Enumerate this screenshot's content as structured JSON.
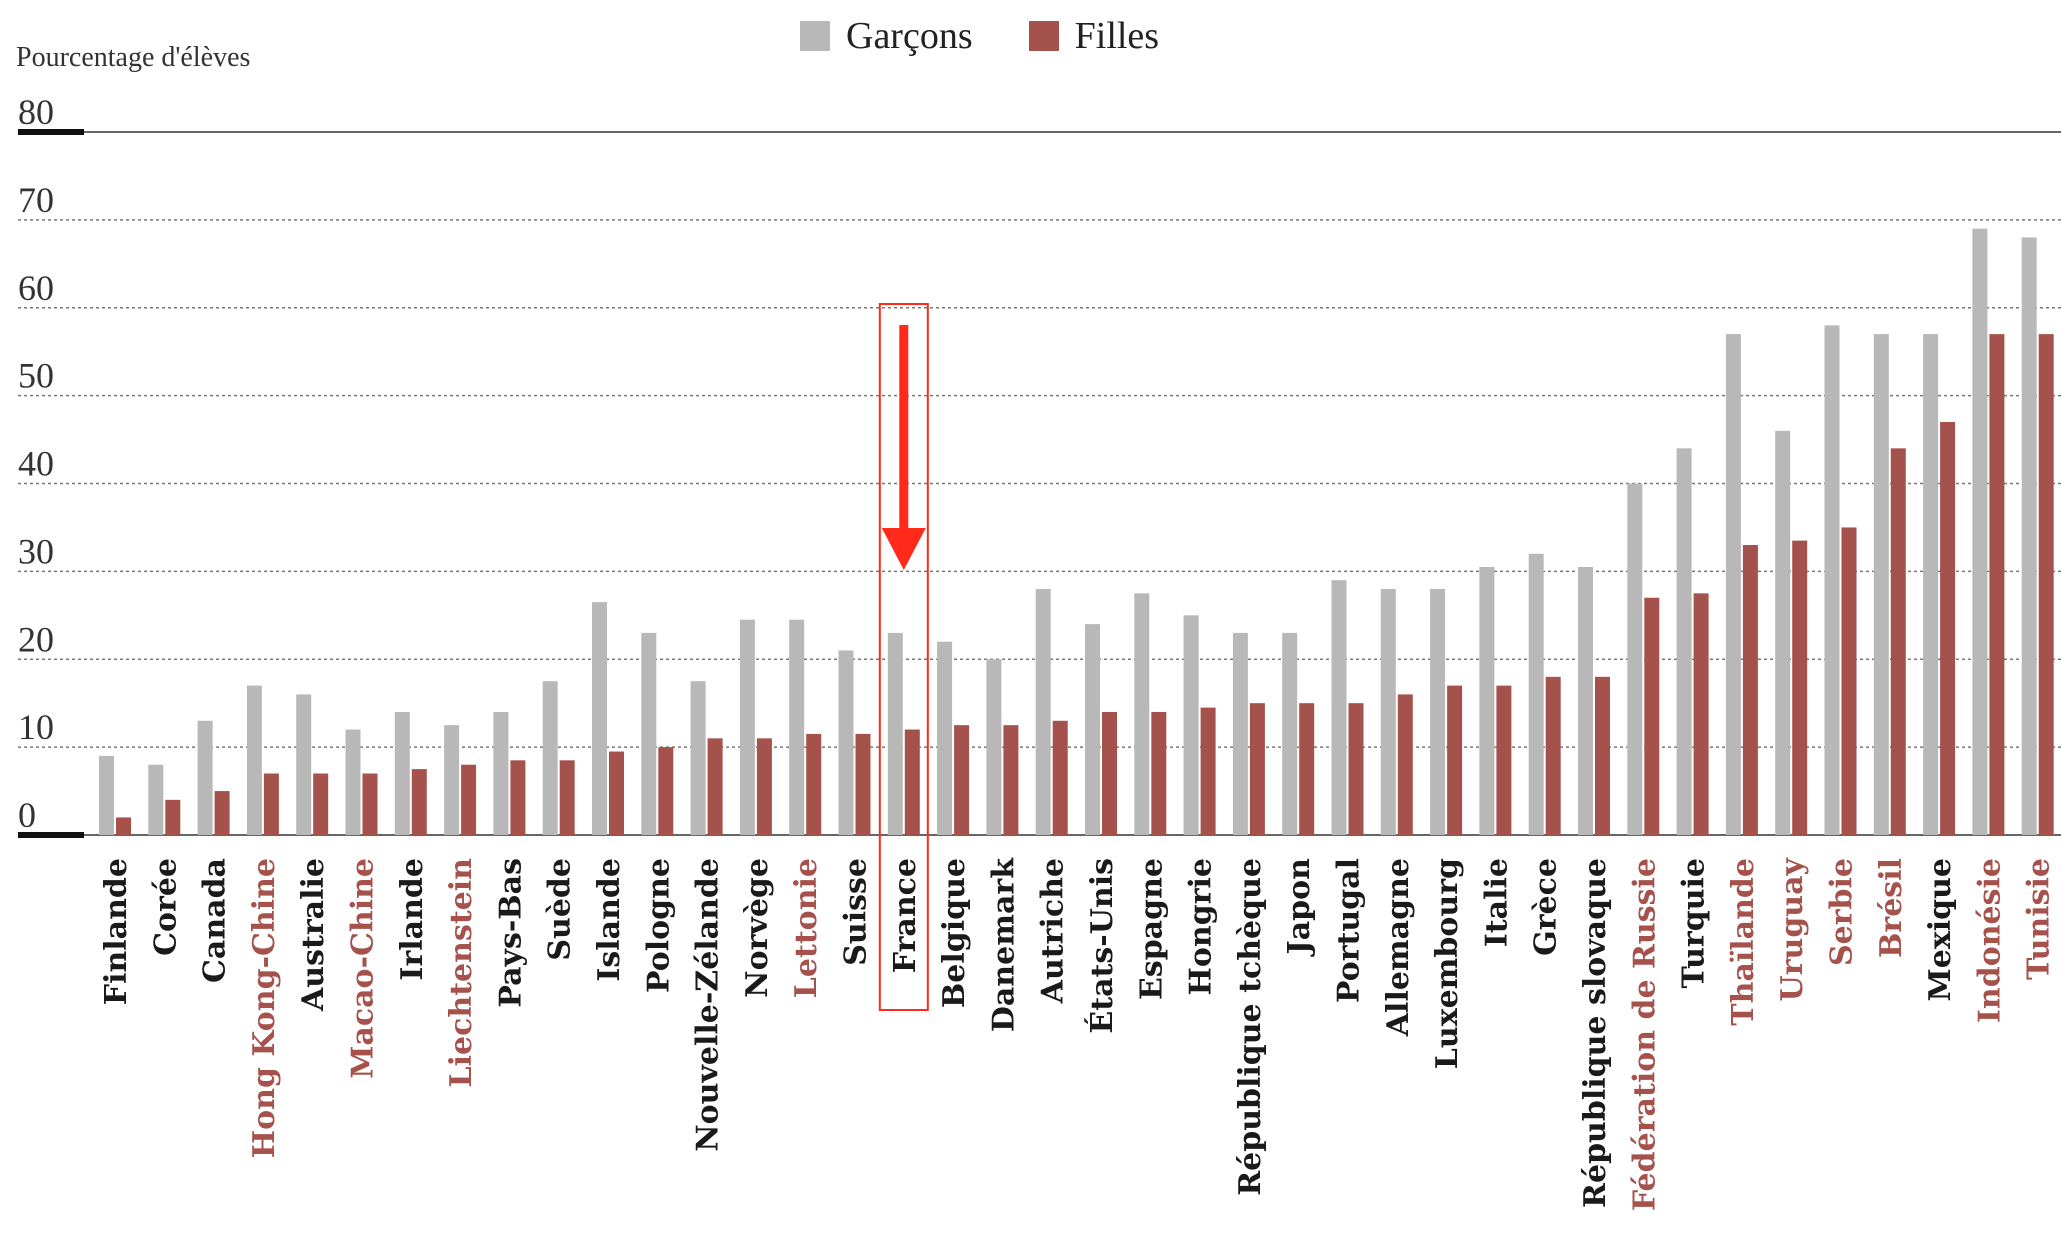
{
  "chart_data": {
    "type": "bar",
    "ylabel": "Pourcentage d'élèves",
    "ylim": [
      0,
      80
    ],
    "yticks": [
      "0",
      "10",
      "20",
      "30",
      "40",
      "50",
      "60",
      "70",
      "80"
    ],
    "grid": true,
    "legend_position": "top-center",
    "categories": [
      "Finlande",
      "Corée",
      "Canada",
      "Hong Kong-Chine",
      "Australie",
      "Macao-Chine",
      "Irlande",
      "Liechtenstein",
      "Pays-Bas",
      "Suède",
      "Islande",
      "Pologne",
      "Nouvelle-Zélande",
      "Norvège",
      "Lettonie",
      "Suisse",
      "France",
      "Belgique",
      "Danemark",
      "Autriche",
      "États-Unis",
      "Espagne",
      "Hongrie",
      "République tchèque",
      "Japon",
      "Portugal",
      "Allemagne",
      "Luxembourg",
      "Italie",
      "Grèce",
      "République slovaque",
      "Fédération de Russie",
      "Turquie",
      "Thaïlande",
      "Uruguay",
      "Serbie",
      "Brésil",
      "Mexique",
      "Indonésie",
      "Tunisie"
    ],
    "partner_countries": [
      "Hong Kong-Chine",
      "Macao-Chine",
      "Liechtenstein",
      "Lettonie",
      "Fédération de Russie",
      "Thaïlande",
      "Uruguay",
      "Serbie",
      "Brésil",
      "Indonésie",
      "Tunisie"
    ],
    "highlighted_category": "France",
    "series": [
      {
        "name": "Garçons",
        "color": "#b8b8b8",
        "values": [
          9,
          8,
          13,
          17,
          16,
          12,
          14,
          12.5,
          14,
          17.5,
          26.5,
          23,
          17.5,
          24.5,
          24.5,
          21,
          23,
          22,
          20,
          28,
          24,
          27.5,
          25,
          23,
          23,
          29,
          28,
          28,
          30.5,
          32,
          30.5,
          40,
          44,
          57,
          46,
          58,
          57,
          57,
          69,
          68
        ]
      },
      {
        "name": "Filles",
        "color": "#a6524c",
        "values": [
          2,
          4,
          5,
          7,
          7,
          7,
          7.5,
          8,
          8.5,
          8.5,
          9.5,
          10,
          11,
          11,
          11.5,
          11.5,
          12,
          12.5,
          12.5,
          13,
          14,
          14,
          14.5,
          15,
          15,
          15,
          16,
          17,
          17,
          18,
          18,
          27,
          27.5,
          33,
          33.5,
          35,
          44,
          47,
          57,
          57
        ]
      }
    ]
  },
  "colors": {
    "partner_label": "#a6524c",
    "oecd_label": "#1a1a1a",
    "highlight": "#ff2a1a"
  }
}
